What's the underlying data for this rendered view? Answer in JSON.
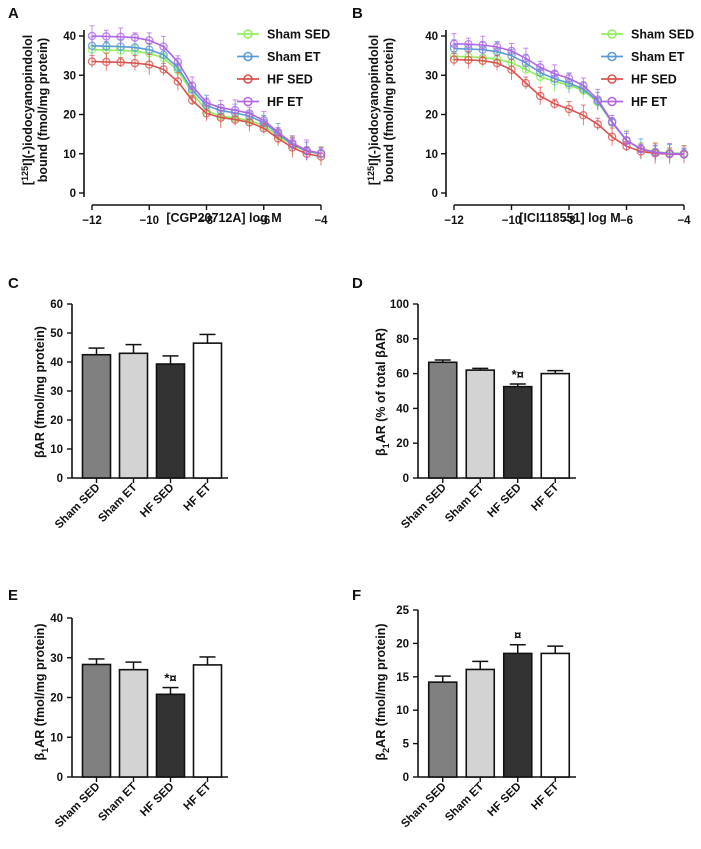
{
  "chart_data": [
    {
      "panel": "A",
      "type": "line",
      "xlabel": "[CGP20712A] log M",
      "ylabel_line1_parts": [
        "[",
        "125",
        "I](-)iodocyanopindolol"
      ],
      "ylabel_line2": "bound (fmol/mg protein)",
      "xlim": [
        -12,
        -4
      ],
      "ylim": [
        0,
        40
      ],
      "xticks": [
        -12,
        -10,
        -8,
        -6,
        -4
      ],
      "yticks": [
        0,
        10,
        20,
        30,
        40
      ],
      "x": [
        -12,
        -11.5,
        -11,
        -10.5,
        -10,
        -9.5,
        -9,
        -8.5,
        -8,
        -7.5,
        -7,
        -6.5,
        -6,
        -5.5,
        -5,
        -4.5,
        -4
      ],
      "series": [
        {
          "name": "Sham SED",
          "color": "#90EE5A",
          "values": [
            36.5,
            36.4,
            36.3,
            36.1,
            35.6,
            34.4,
            31.2,
            25.5,
            21.0,
            19.6,
            19.1,
            18.5,
            17.1,
            14.6,
            12.2,
            10.6,
            9.9
          ]
        },
        {
          "name": "Sham ET",
          "color": "#5B9BD5",
          "values": [
            37.5,
            37.4,
            37.3,
            37.1,
            36.5,
            35.2,
            31.9,
            26.3,
            22.3,
            21.0,
            20.4,
            19.6,
            17.9,
            15.1,
            12.4,
            10.7,
            10.0
          ]
        },
        {
          "name": "HF SED",
          "color": "#D9534F",
          "values": [
            33.5,
            33.4,
            33.3,
            33.1,
            32.7,
            31.5,
            28.4,
            23.6,
            20.3,
            19.2,
            18.7,
            18.0,
            16.5,
            13.9,
            11.6,
            10.0,
            9.3
          ]
        },
        {
          "name": "HF ET",
          "color": "#B266E6",
          "values": [
            40.0,
            39.9,
            39.8,
            39.6,
            38.9,
            37.3,
            33.4,
            27.3,
            23.0,
            21.7,
            21.1,
            20.3,
            18.5,
            15.5,
            12.7,
            10.9,
            10.1
          ]
        }
      ]
    },
    {
      "panel": "B",
      "type": "line",
      "xlabel": "[ICI118551] log M",
      "ylabel_line1_parts": [
        "[",
        "125",
        "I](-)iodocyanopindolol"
      ],
      "ylabel_line2": "bound (fmol/mg protein)",
      "xlim": [
        -12,
        -4
      ],
      "ylim": [
        0,
        40
      ],
      "xticks": [
        -12,
        -10,
        -8,
        -6,
        -4
      ],
      "yticks": [
        0,
        10,
        20,
        30,
        40
      ],
      "x": [
        -12,
        -11.5,
        -11,
        -10.5,
        -10,
        -9.5,
        -9,
        -8.5,
        -8,
        -7.5,
        -7,
        -6.5,
        -6,
        -5.5,
        -5,
        -4.5,
        -4
      ],
      "series": [
        {
          "name": "Sham SED",
          "color": "#90EE5A",
          "values": [
            34.8,
            34.7,
            34.5,
            34.1,
            33.2,
            31.5,
            29.6,
            28.4,
            27.5,
            26.1,
            23.1,
            17.9,
            13.4,
            11.3,
            10.5,
            10.2,
            10.1
          ]
        },
        {
          "name": "Sham ET",
          "color": "#5B9BD5",
          "values": [
            36.8,
            36.7,
            36.5,
            36.0,
            35.0,
            33.1,
            30.7,
            29.1,
            28.0,
            26.5,
            23.4,
            18.0,
            13.3,
            11.2,
            10.4,
            10.1,
            10.0
          ]
        },
        {
          "name": "HF SED",
          "color": "#D9534F",
          "values": [
            34.0,
            33.9,
            33.7,
            33.1,
            31.4,
            28.0,
            24.7,
            22.7,
            21.4,
            19.8,
            17.5,
            14.3,
            11.9,
            10.6,
            10.1,
            9.9,
            9.8
          ]
        },
        {
          "name": "HF ET",
          "color": "#B266E6",
          "values": [
            38.0,
            37.9,
            37.7,
            37.2,
            36.2,
            34.3,
            32.0,
            30.4,
            29.2,
            27.4,
            23.8,
            18.2,
            13.4,
            11.2,
            10.3,
            10.0,
            9.9
          ]
        }
      ]
    },
    {
      "panel": "C",
      "type": "bar",
      "categories": [
        "Sham SED",
        "Sham ET",
        "HF SED",
        "HF ET"
      ],
      "values": [
        42.5,
        43.0,
        39.3,
        46.5
      ],
      "errors": [
        2.3,
        3.0,
        2.8,
        3.0
      ],
      "colors": [
        "#808080",
        "#D3D3D3",
        "#333333",
        "#FFFFFF"
      ],
      "ylabel": "βAR (fmol/mg protein)",
      "ylim": [
        0,
        60
      ],
      "yticks": [
        0,
        10,
        20,
        30,
        40,
        50,
        60
      ],
      "annotations": [
        "",
        "",
        "",
        ""
      ]
    },
    {
      "panel": "D",
      "type": "bar",
      "categories": [
        "Sham SED",
        "Sham ET",
        "HF SED",
        "HF ET"
      ],
      "values": [
        66.5,
        62.0,
        52.5,
        60.0
      ],
      "errors": [
        1.3,
        1.0,
        1.5,
        1.7
      ],
      "colors": [
        "#808080",
        "#D3D3D3",
        "#333333",
        "#FFFFFF"
      ],
      "ylabel_parts": [
        "β",
        "1",
        "AR (% of total βAR)"
      ],
      "ylim": [
        0,
        100
      ],
      "yticks": [
        0,
        20,
        40,
        60,
        80,
        100
      ],
      "annotations": [
        "",
        "",
        "*¤",
        ""
      ]
    },
    {
      "panel": "E",
      "type": "bar",
      "categories": [
        "Sham SED",
        "Sham ET",
        "HF SED",
        "HF ET"
      ],
      "values": [
        28.3,
        27.0,
        20.8,
        28.2
      ],
      "errors": [
        1.4,
        1.9,
        1.7,
        2.0
      ],
      "colors": [
        "#808080",
        "#D3D3D3",
        "#333333",
        "#FFFFFF"
      ],
      "ylabel_parts": [
        "β",
        "1",
        "AR (fmol/mg protein)"
      ],
      "ylim": [
        0,
        40
      ],
      "yticks": [
        0,
        10,
        20,
        30,
        40
      ],
      "annotations": [
        "",
        "",
        "*¤",
        ""
      ]
    },
    {
      "panel": "F",
      "type": "bar",
      "categories": [
        "Sham SED",
        "Sham ET",
        "HF SED",
        "HF ET"
      ],
      "values": [
        14.2,
        16.1,
        18.5,
        18.5
      ],
      "errors": [
        0.9,
        1.2,
        1.3,
        1.1
      ],
      "colors": [
        "#808080",
        "#D3D3D3",
        "#333333",
        "#FFFFFF"
      ],
      "ylabel_parts": [
        "β",
        "2",
        "AR (fmol/mg protein)"
      ],
      "ylim": [
        0,
        25
      ],
      "yticks": [
        0,
        5,
        10,
        15,
        20,
        25
      ],
      "annotations": [
        "",
        "",
        "¤",
        ""
      ]
    }
  ]
}
